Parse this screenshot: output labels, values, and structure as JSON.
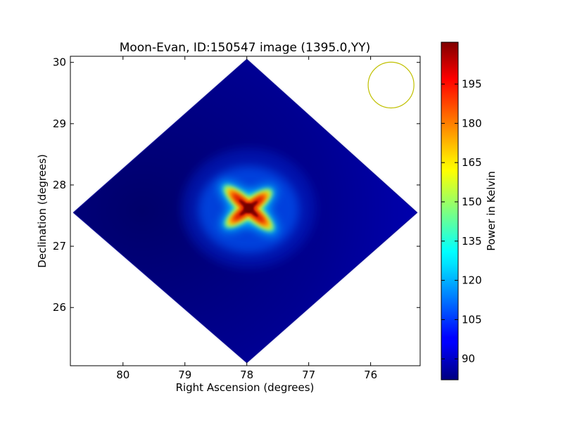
{
  "chart_data": {
    "type": "heatmap",
    "title": "Moon-Evan, ID:150547 image (1395.0,YY)",
    "xlabel": "Right Ascension (degrees)",
    "ylabel": "Declination (degrees)",
    "xlim": [
      80.85,
      75.2
    ],
    "ylim": [
      25.05,
      30.1
    ],
    "x_inverted": true,
    "x_ticks": [
      80,
      79,
      78,
      77,
      76
    ],
    "y_ticks": [
      26,
      27,
      28,
      29,
      30
    ],
    "field_corners": [
      {
        "ra": 78.0,
        "dec": 30.05
      },
      {
        "ra": 75.25,
        "dec": 27.55
      },
      {
        "ra": 78.0,
        "dec": 25.1
      },
      {
        "ra": 80.8,
        "dec": 27.55
      }
    ],
    "source_peak": {
      "ra": 77.97,
      "dec": 27.62,
      "value": 210
    },
    "background_value": 88,
    "beam_circle": {
      "ra": 75.67,
      "dec": 29.63,
      "radius_deg": 0.37,
      "color": "#c0c000"
    },
    "colorbar": {
      "label": "Power in Kelvin",
      "colormap": "jet",
      "vmin": 82,
      "vmax": 211,
      "ticks": [
        90,
        105,
        120,
        135,
        150,
        165,
        180,
        195
      ]
    },
    "grid": false
  }
}
